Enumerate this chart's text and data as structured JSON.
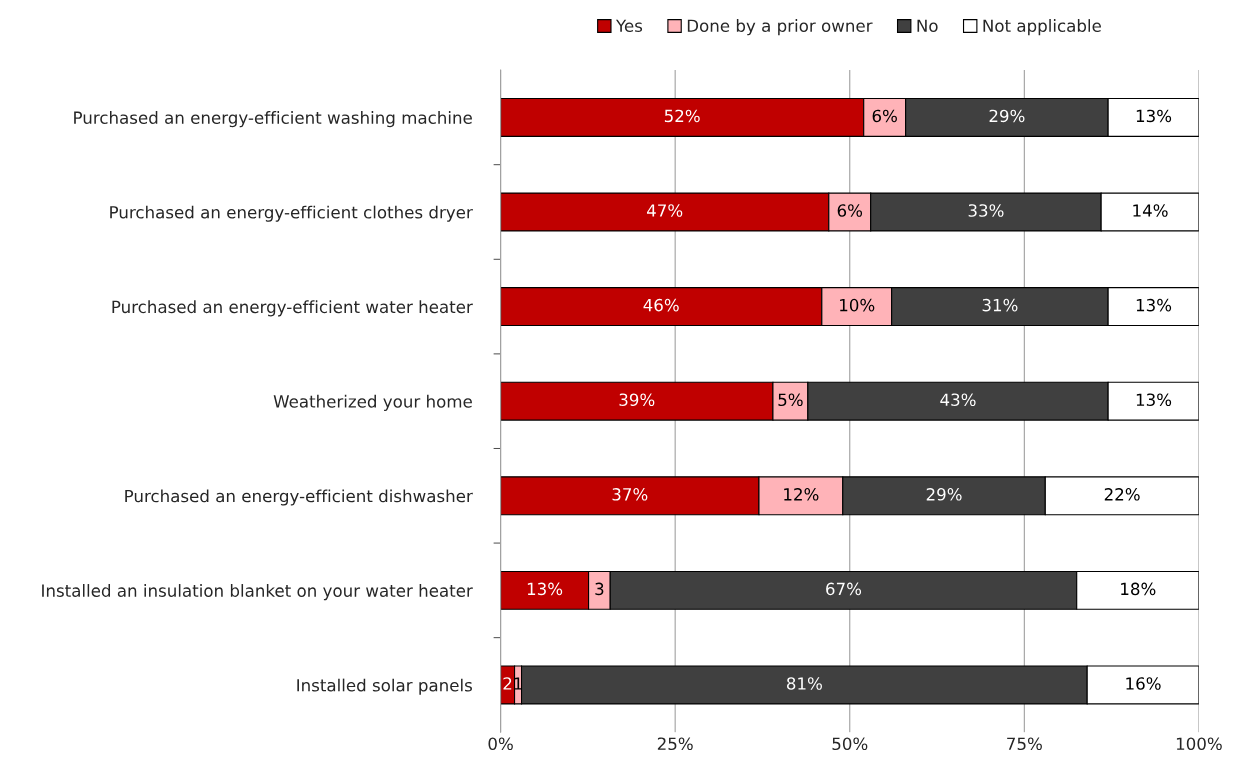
{
  "chart_data": {
    "type": "bar",
    "orientation": "horizontal",
    "stacked": true,
    "categories": [
      "Purchased an energy-efficient washing machine",
      "Purchased an energy-efficient clothes dryer",
      "Purchased an energy-efficient water heater",
      "Weatherized your home",
      "Purchased an energy-efficient dishwasher",
      "Installed an insulation blanket on your water heater",
      "Installed solar panels"
    ],
    "series": [
      {
        "name": "Yes",
        "color": "#c00000",
        "values": [
          52,
          47,
          46,
          39,
          37,
          12.6,
          2
        ],
        "value_labels": [
          "52%",
          "47%",
          "46%",
          "39%",
          "37%",
          "13%",
          "2"
        ]
      },
      {
        "name": "Done by a prior owner",
        "color": "#ffb3b8",
        "values": [
          6,
          6,
          10,
          5,
          12,
          3.1,
          1
        ],
        "value_labels": [
          "6%",
          "6%",
          "10%",
          "5%",
          "12%",
          "3",
          "1"
        ]
      },
      {
        "name": "No",
        "color": "#404040",
        "values": [
          29,
          33,
          31,
          43,
          29,
          66.8,
          81
        ],
        "value_labels": [
          "29%",
          "33%",
          "31%",
          "43%",
          "29%",
          "67%",
          "81%"
        ]
      },
      {
        "name": "Not applicable",
        "color": "#ffffff",
        "values": [
          13,
          14,
          13,
          13,
          22,
          17.5,
          16
        ],
        "value_labels": [
          "13%",
          "14%",
          "13%",
          "13%",
          "22%",
          "18%",
          "16%"
        ]
      }
    ],
    "xlim": [
      0,
      100
    ],
    "xticks": [
      {
        "value": 0,
        "label": "0%"
      },
      {
        "value": 25,
        "label": "25%"
      },
      {
        "value": 50,
        "label": "50%"
      },
      {
        "value": 75,
        "label": "75%"
      },
      {
        "value": 100,
        "label": "100%"
      }
    ],
    "grid": "x",
    "legend": "top"
  }
}
